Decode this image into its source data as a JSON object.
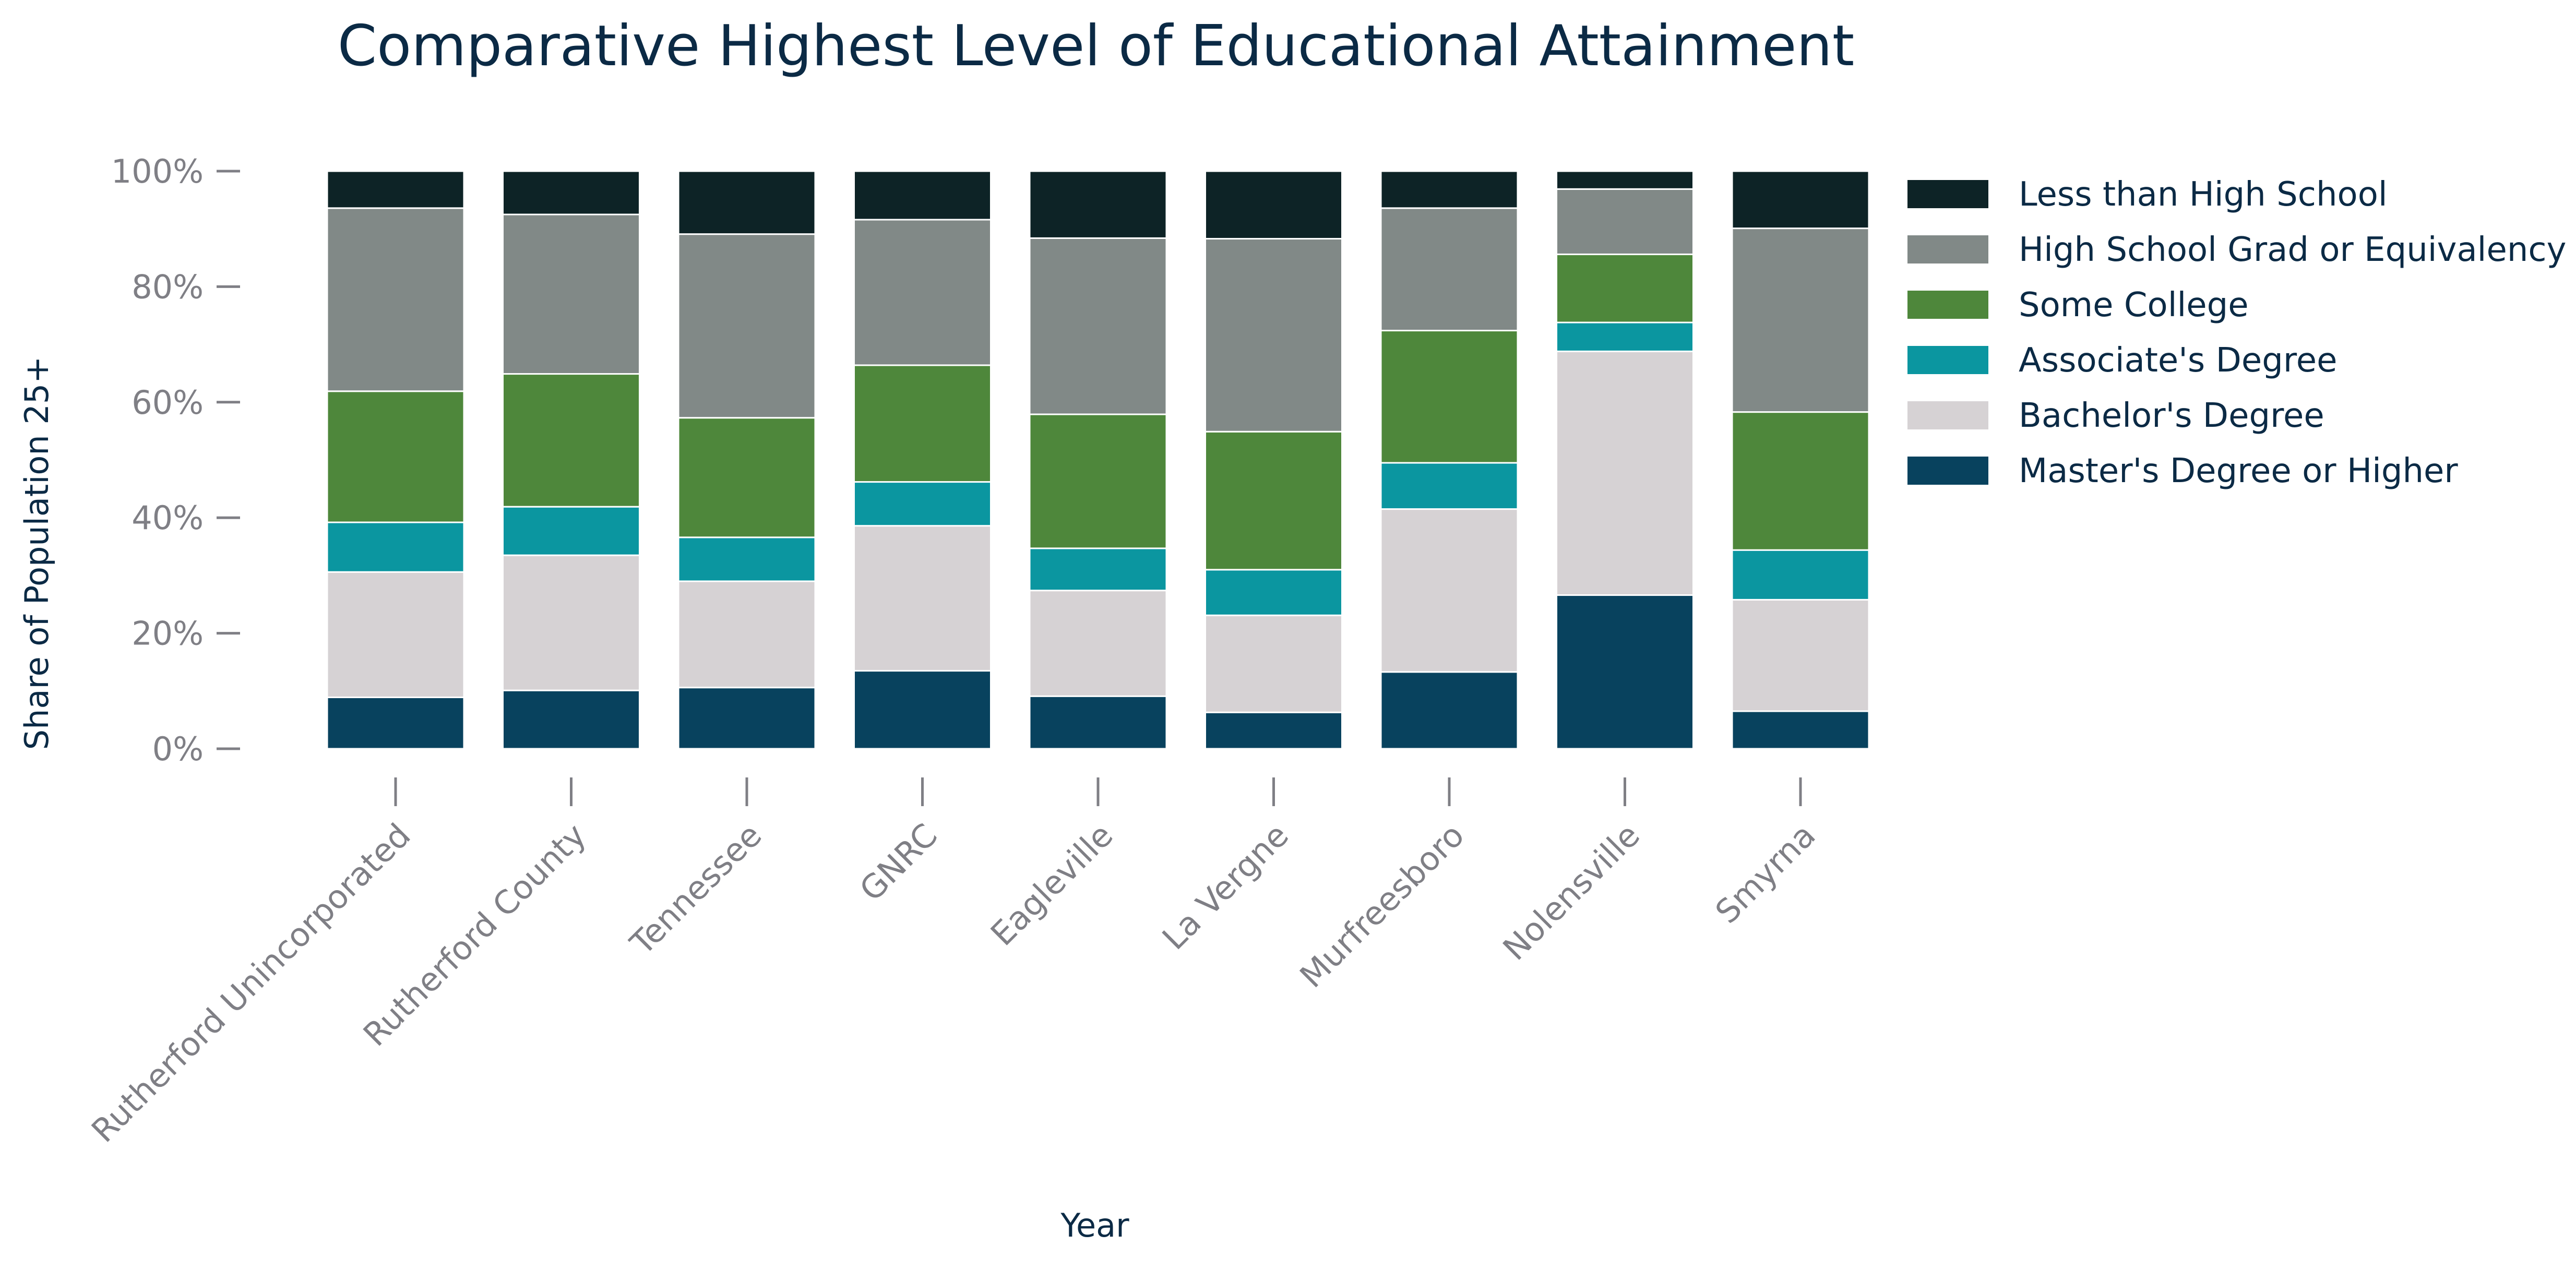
{
  "chart_data": {
    "type": "bar",
    "stacked": true,
    "title": "Comparative Highest Level of Educational Attainment",
    "xlabel": "Year",
    "ylabel": "Share of Population 25+",
    "ylim": [
      0,
      100
    ],
    "y_ticks": [
      "0%",
      "20%",
      "40%",
      "60%",
      "80%",
      "100%"
    ],
    "y_tick_values": [
      0,
      20,
      40,
      60,
      80,
      100
    ],
    "grid": false,
    "legend_position": "right",
    "categories": [
      "Rutherford Unincorporated",
      "Rutherford County",
      "Tennessee",
      "GNRC",
      "Eagleville",
      "La Vergne",
      "Murfreesboro",
      "Nolensville",
      "Smyrna"
    ],
    "series": [
      {
        "name": "Master's Degree or Higher",
        "color": "#08425e",
        "values": [
          8.9,
          10.1,
          10.6,
          13.5,
          9.1,
          6.3,
          13.3,
          26.6,
          6.5
        ]
      },
      {
        "name": "Bachelor's Degree",
        "color": "#d6d2d4",
        "values": [
          21.7,
          23.4,
          18.4,
          25.1,
          18.3,
          16.8,
          28.2,
          42.2,
          19.3
        ]
      },
      {
        "name": "Associate's Degree",
        "color": "#0b96a0",
        "values": [
          8.6,
          8.4,
          7.6,
          7.6,
          7.3,
          7.9,
          8.0,
          5.0,
          8.6
        ]
      },
      {
        "name": "Some College",
        "color": "#4e873b",
        "values": [
          22.7,
          23.0,
          20.7,
          20.2,
          23.2,
          23.9,
          22.9,
          11.8,
          23.9
        ]
      },
      {
        "name": "High School Grad or Equivalency",
        "color": "#818987",
        "values": [
          31.7,
          27.6,
          31.8,
          25.2,
          30.5,
          33.4,
          21.2,
          11.3,
          31.8
        ]
      },
      {
        "name": "Less than High School",
        "color": "#0d2326",
        "values": [
          6.4,
          7.5,
          10.9,
          8.4,
          11.6,
          11.7,
          6.4,
          3.1,
          9.9
        ]
      }
    ],
    "legend_order": [
      "Less than High School",
      "High School Grad or Equivalency",
      "Some College",
      "Associate's Degree",
      "Bachelor's Degree",
      "Master's Degree or Higher"
    ]
  }
}
